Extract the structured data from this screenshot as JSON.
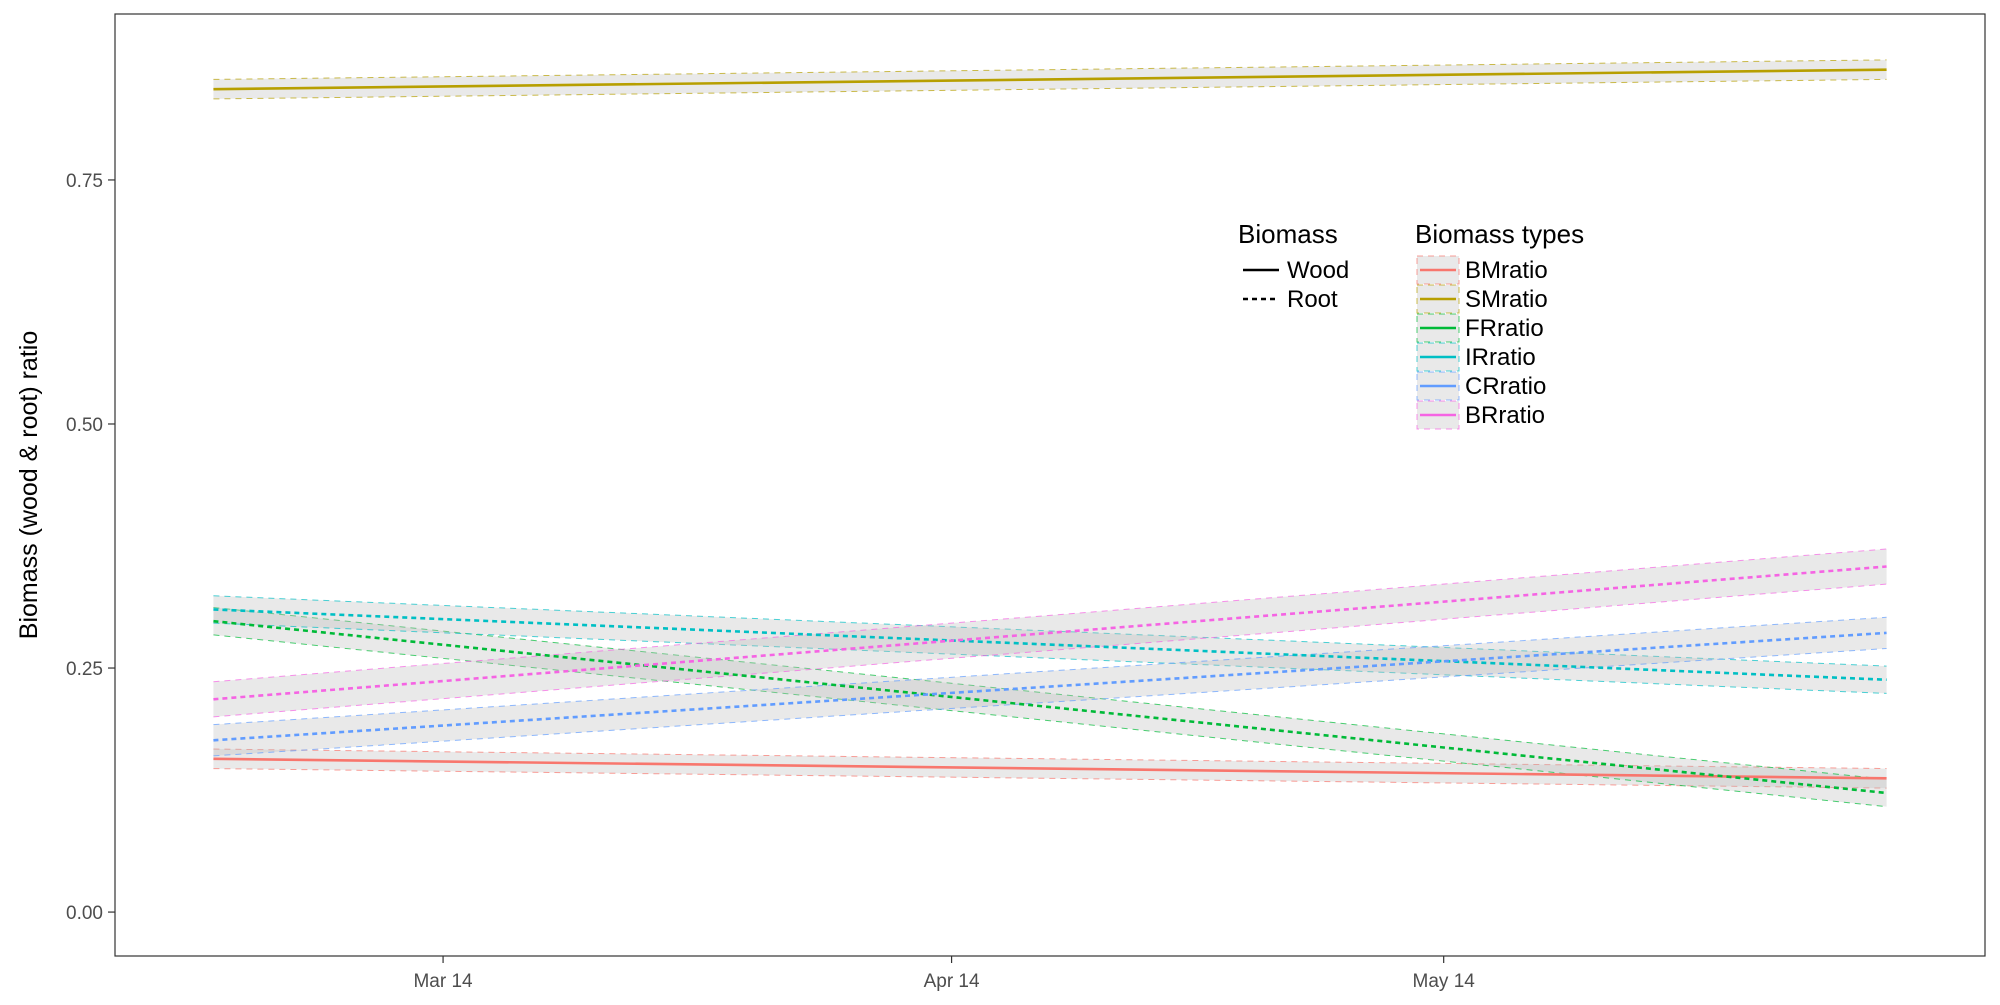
{
  "chart_data": {
    "type": "line",
    "title": "",
    "xlabel": "",
    "ylabel": "Biomass (wood & root) ratio",
    "x_ticks": [
      "Mar 14",
      "Apr 14",
      "May 14"
    ],
    "x_range": [
      "2014-02-22",
      "2014-06-16"
    ],
    "x_start": "2014-02-28",
    "x_end": "2014-06-10",
    "ylim": [
      -0.045,
      0.92
    ],
    "y_ticks": [
      0.0,
      0.25,
      0.5,
      0.75
    ],
    "y_tick_labels": [
      "0.00",
      "0.25",
      "0.50",
      "0.75"
    ],
    "grid": false,
    "legend_position": "right-inside",
    "linetype_legend": {
      "title": "Biomass",
      "entries": [
        {
          "label": "Wood",
          "dash": "solid"
        },
        {
          "label": "Root",
          "dash": "dotted"
        }
      ]
    },
    "color_legend": {
      "title": "Biomass types"
    },
    "series": [
      {
        "name": "BMratio",
        "color": "#F8766D",
        "biomass": "Wood",
        "dash": "solid",
        "y_start": 0.157,
        "y_end": 0.137,
        "band": 0.01
      },
      {
        "name": "SMratio",
        "color": "#B79F00",
        "biomass": "Wood",
        "dash": "solid",
        "y_start": 0.843,
        "y_end": 0.863,
        "band": 0.01
      },
      {
        "name": "FRratio",
        "color": "#00BA38",
        "biomass": "Root",
        "dash": "dotted",
        "y_start": 0.298,
        "y_end": 0.122,
        "band": 0.014
      },
      {
        "name": "IRratio",
        "color": "#00BFC4",
        "biomass": "Root",
        "dash": "dotted",
        "y_start": 0.31,
        "y_end": 0.238,
        "band": 0.014
      },
      {
        "name": "CRratio",
        "color": "#619CFF",
        "biomass": "Root",
        "dash": "dotted",
        "y_start": 0.176,
        "y_end": 0.286,
        "band": 0.016
      },
      {
        "name": "BRratio",
        "color": "#F564E3",
        "biomass": "Root",
        "dash": "dotted",
        "y_start": 0.218,
        "y_end": 0.354,
        "band": 0.018
      }
    ]
  }
}
